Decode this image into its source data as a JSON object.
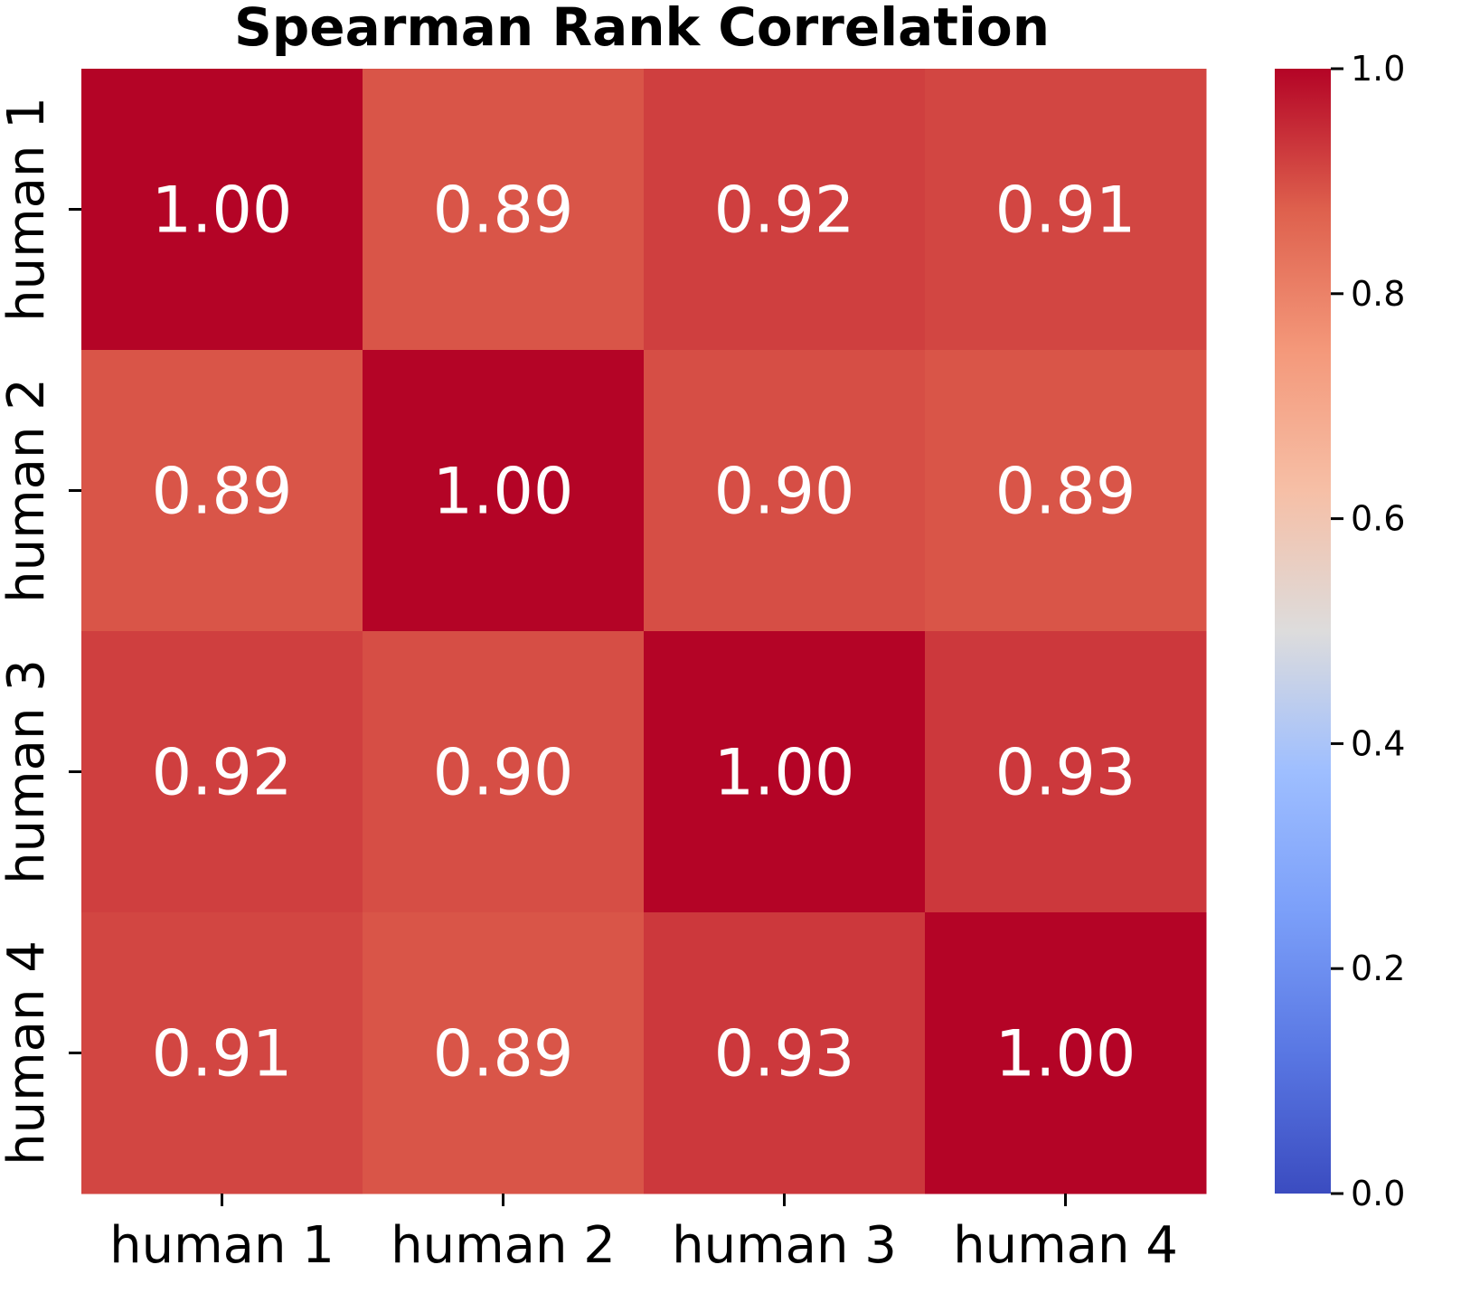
{
  "chart_data": {
    "type": "heatmap",
    "title": "Spearman Rank Correlation",
    "row_labels": [
      "human 1",
      "human 2",
      "human 3",
      "human 4"
    ],
    "col_labels": [
      "human 1",
      "human 2",
      "human 3",
      "human 4"
    ],
    "values": [
      [
        1.0,
        0.89,
        0.92,
        0.91
      ],
      [
        0.89,
        1.0,
        0.9,
        0.89
      ],
      [
        0.92,
        0.9,
        1.0,
        0.93
      ],
      [
        0.91,
        0.89,
        0.93,
        1.0
      ]
    ],
    "value_format": "2 decimals",
    "colormap": "coolwarm",
    "vmin": 0.0,
    "vmax": 1.0,
    "colorbar_ticks": [
      "0.0",
      "0.2",
      "0.4",
      "0.6",
      "0.8",
      "1.0"
    ],
    "colorbar_tick_values": [
      0.0,
      0.2,
      0.4,
      0.6,
      0.8,
      1.0
    ],
    "colorbar_position": "right",
    "annotation_color": "#ffffff",
    "grid": false
  }
}
